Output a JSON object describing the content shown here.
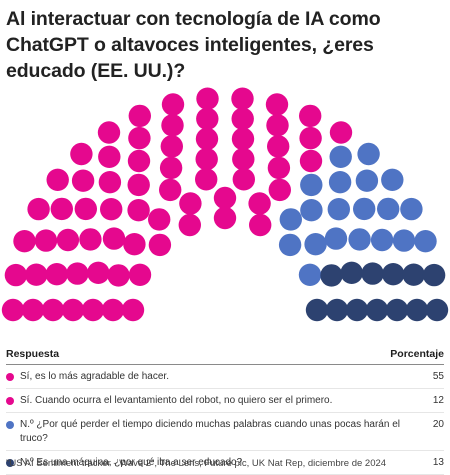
{
  "title": "Al interactuar con tecnología de IA como ChatGPT o altavoces inteligentes, ¿eres educado (EE. UU.)?",
  "legend": {
    "col_label": "Respuesta",
    "col_value": "Porcentaje"
  },
  "source": "\"US AI Sentiment tracker - Wave 2\", The Lens, Future plc, UK Nat Rep, diciembre de 2024",
  "chart_data": {
    "type": "parliament",
    "total_seats": 100,
    "series": [
      {
        "name": "Sí, es lo más agradable de hacer.",
        "value": 55,
        "color": "#e5088e"
      },
      {
        "name": "Sí. Cuando ocurra el levantamiento del robot, no quiero ser el primero.",
        "value": 12,
        "color": "#e5088e"
      },
      {
        "name": "N.º ¿Por qué perder el tiempo diciendo muchas palabras cuando unas pocas harán el truco?",
        "value": 20,
        "color": "#4f74c4"
      },
      {
        "name": "N.º Es una máquina, ¿por qué iba a ser educado?",
        "value": 13,
        "color": "#2d4270"
      }
    ]
  }
}
